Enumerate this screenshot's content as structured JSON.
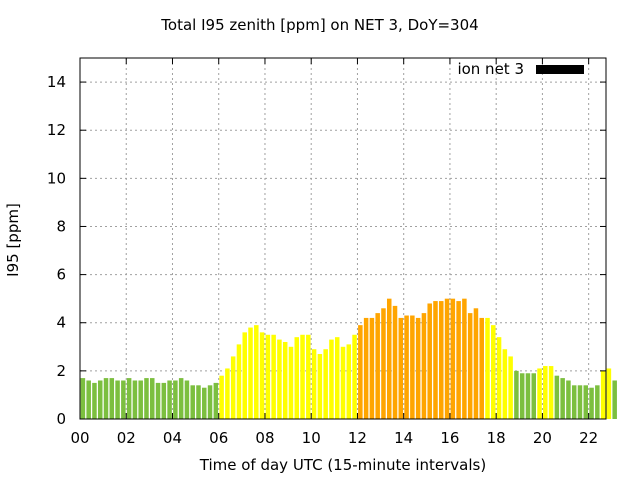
{
  "chart_data": {
    "type": "bar",
    "title": "Total I95 zenith [ppm] on NET 3, DoY=304",
    "xlabel": "Time of day UTC (15-minute intervals)",
    "ylabel": "I95 [ppm]",
    "legend": {
      "label": "ion net 3",
      "placement": "top-right",
      "color": "#000000"
    },
    "xlim": [
      0,
      22.75
    ],
    "ylim": [
      0,
      15
    ],
    "xticks": [
      "00",
      "02",
      "04",
      "06",
      "08",
      "10",
      "12",
      "14",
      "16",
      "18",
      "20",
      "22"
    ],
    "yticks": [
      "0",
      "2",
      "4",
      "6",
      "8",
      "10",
      "12",
      "14"
    ],
    "grid": true,
    "interval_hours": 0.25,
    "colors": {
      "green": "#7cbf3f",
      "yellow": "#ffff00",
      "orange": "#ffa500"
    },
    "values": [
      1.7,
      1.6,
      1.5,
      1.6,
      1.7,
      1.7,
      1.6,
      1.6,
      1.7,
      1.6,
      1.6,
      1.7,
      1.7,
      1.5,
      1.5,
      1.6,
      1.6,
      1.7,
      1.6,
      1.4,
      1.4,
      1.3,
      1.4,
      1.5,
      1.8,
      2.1,
      2.6,
      3.1,
      3.6,
      3.8,
      3.9,
      3.6,
      3.5,
      3.5,
      3.3,
      3.2,
      3.0,
      3.4,
      3.5,
      3.5,
      2.9,
      2.7,
      2.9,
      3.3,
      3.4,
      3.0,
      3.1,
      3.5,
      3.9,
      4.2,
      4.2,
      4.4,
      4.6,
      5.0,
      4.7,
      4.2,
      4.3,
      4.3,
      4.2,
      4.4,
      4.8,
      4.9,
      4.9,
      5.0,
      5.0,
      4.9,
      5.0,
      4.4,
      4.6,
      4.2,
      4.2,
      3.9,
      3.4,
      2.9,
      2.6,
      2.0,
      1.9,
      1.9,
      1.9,
      2.1,
      2.2,
      2.2,
      1.8,
      1.7,
      1.6,
      1.4,
      1.4,
      1.4,
      1.3,
      1.4,
      2.0,
      2.1,
      1.6
    ],
    "bar_colors": [
      "green",
      "green",
      "green",
      "green",
      "green",
      "green",
      "green",
      "green",
      "green",
      "green",
      "green",
      "green",
      "green",
      "green",
      "green",
      "green",
      "green",
      "green",
      "green",
      "green",
      "green",
      "green",
      "green",
      "green",
      "yellow",
      "yellow",
      "yellow",
      "yellow",
      "yellow",
      "yellow",
      "yellow",
      "yellow",
      "yellow",
      "yellow",
      "yellow",
      "yellow",
      "yellow",
      "yellow",
      "yellow",
      "yellow",
      "yellow",
      "yellow",
      "yellow",
      "yellow",
      "yellow",
      "yellow",
      "yellow",
      "yellow",
      "orange",
      "orange",
      "orange",
      "orange",
      "orange",
      "orange",
      "orange",
      "orange",
      "orange",
      "orange",
      "orange",
      "orange",
      "orange",
      "orange",
      "orange",
      "orange",
      "orange",
      "orange",
      "orange",
      "orange",
      "orange",
      "orange",
      "yellow",
      "yellow",
      "yellow",
      "yellow",
      "yellow",
      "green",
      "green",
      "green",
      "green",
      "yellow",
      "yellow",
      "yellow",
      "green",
      "green",
      "green",
      "green",
      "green",
      "green",
      "green",
      "green",
      "yellow",
      "yellow",
      "green"
    ]
  }
}
